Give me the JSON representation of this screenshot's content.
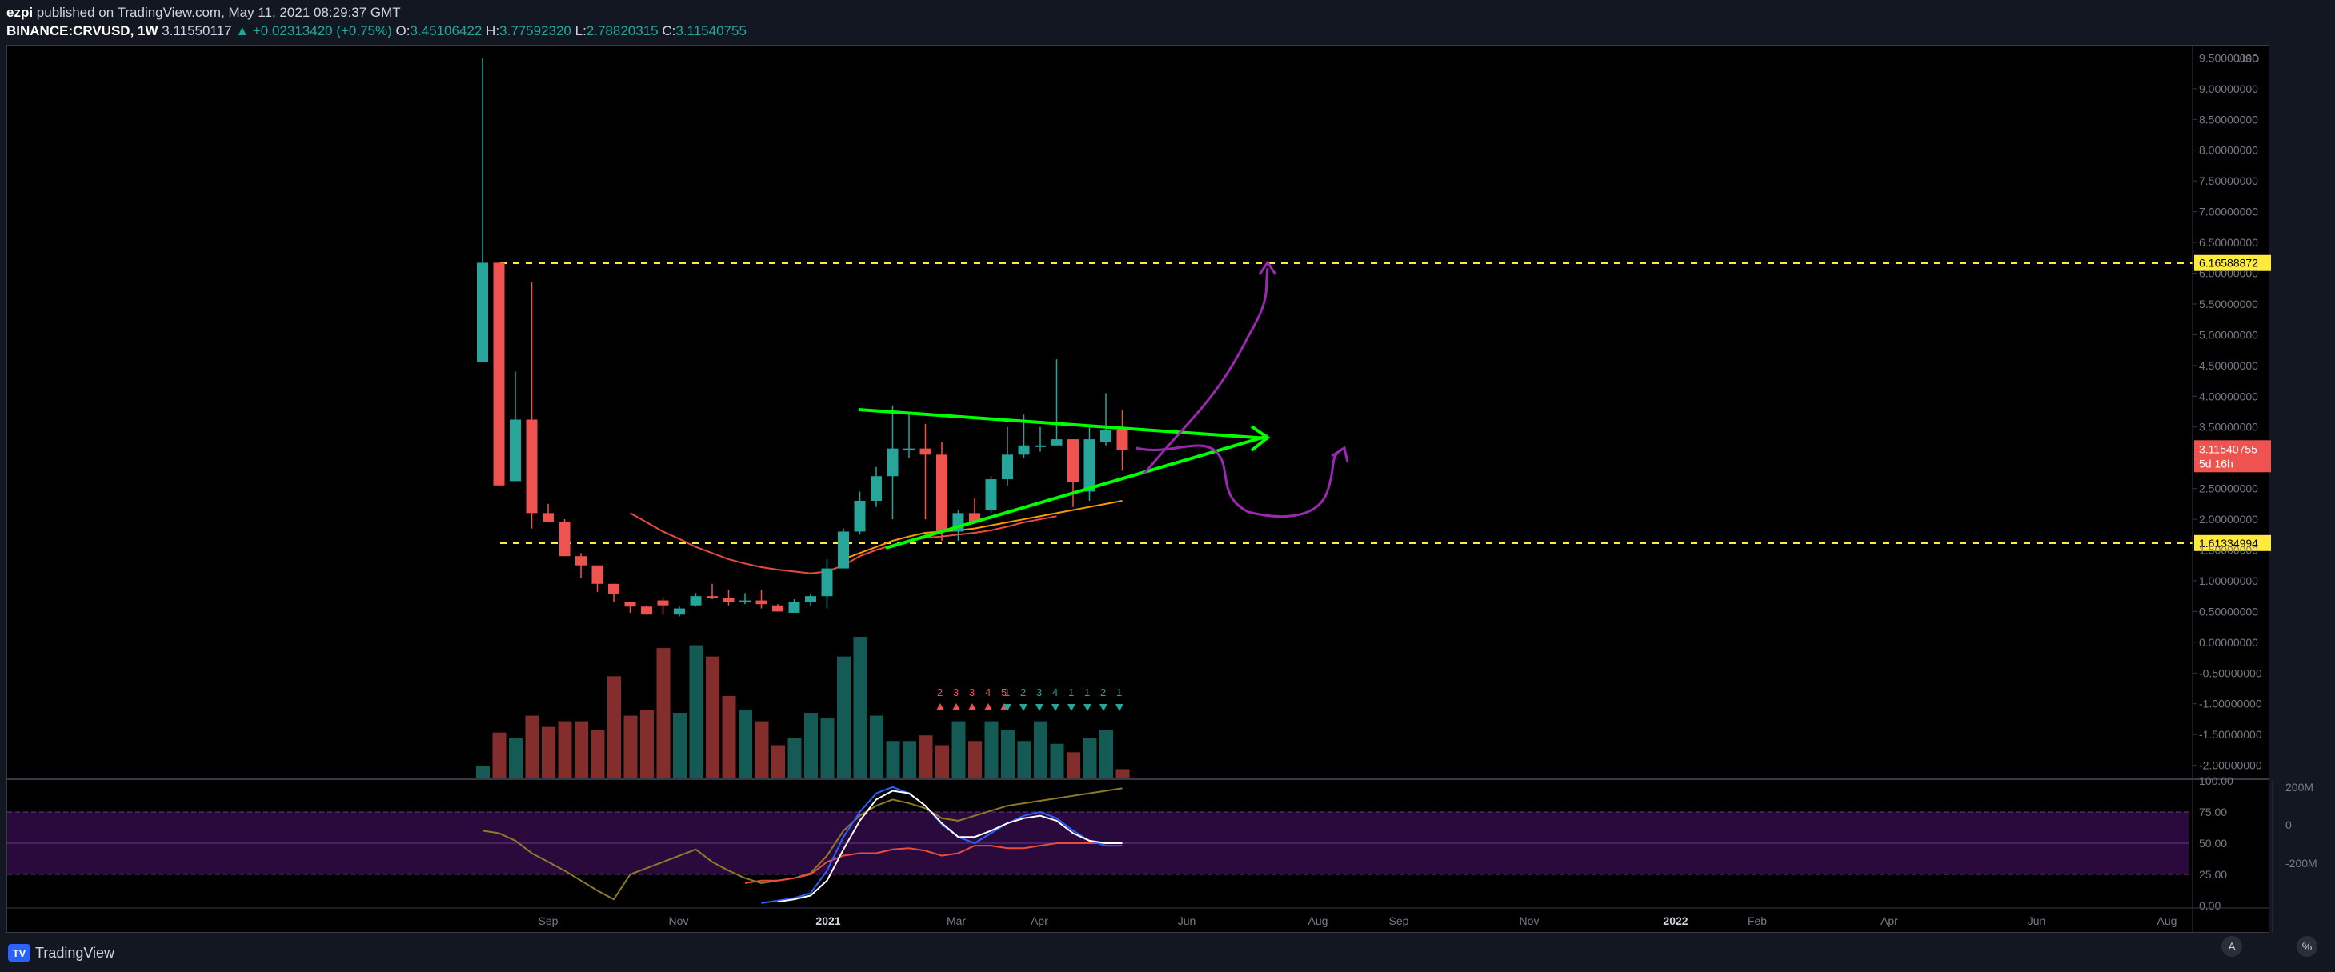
{
  "header": {
    "publisher": "ezpi",
    "published_text": "published on TradingView.com, May 11, 2021 08:29:37 GMT",
    "symbol": "BINANCE:CRVUSD, 1W",
    "last": "3.11550117",
    "change": "+0.02313420 (+0.75%)",
    "open_label": "O:",
    "open": "3.45106422",
    "high_label": "H:",
    "high": "3.77592320",
    "low_label": "L:",
    "low": "2.78820315",
    "close_label": "C:",
    "close": "3.11540755"
  },
  "price_axis": {
    "currency": "USD",
    "ticks": [
      "9.50000000",
      "9.00000000",
      "8.50000000",
      "8.00000000",
      "7.50000000",
      "7.00000000",
      "6.50000000",
      "6.00000000",
      "5.50000000",
      "5.00000000",
      "4.50000000",
      "4.00000000",
      "3.50000000",
      "3.00000000",
      "2.50000000",
      "2.00000000",
      "1.50000000",
      "1.00000000",
      "0.50000000",
      "0.00000000",
      "-0.50000000",
      "-1.00000000",
      "-1.50000000",
      "-2.00000000"
    ],
    "levels": [
      {
        "label": "6.16588872",
        "value": 6.16588872,
        "color": "#ffeb3b"
      },
      {
        "label": "1.61334994",
        "value": 1.61334994,
        "color": "#ffeb3b"
      }
    ],
    "current": {
      "price": "3.11540755",
      "countdown": "5d 16h",
      "color": "#ef5350"
    }
  },
  "time_axis": {
    "labels": [
      "Sep",
      "Nov",
      "2021",
      "Mar",
      "Apr",
      "Jun",
      "Aug",
      "Sep",
      "Nov",
      "2022",
      "Feb",
      "Apr",
      "Jun",
      "Aug"
    ]
  },
  "oscillator": {
    "ticks": [
      "100.00",
      "75.00",
      "50.00",
      "25.00",
      "0.00"
    ],
    "right_ticks": [
      "200M",
      "0",
      "-200M"
    ]
  },
  "td_counts": {
    "red": [
      "2",
      "3",
      "3",
      "4",
      "5"
    ],
    "green": [
      "1",
      "2",
      "3",
      "4",
      "1",
      "1",
      "2",
      "1"
    ]
  },
  "footer": {
    "brand": "TradingView",
    "auto_btn": "A",
    "log_btn": "%"
  },
  "colors": {
    "up": "#26a69a",
    "down": "#ef5350",
    "trendline": "#00ff00",
    "drawing": "#9c27b0",
    "level": "#ffeb3b",
    "rsi_band": "#2a0a3d"
  },
  "chart_data": {
    "type": "candlestick",
    "timeframe": "1W",
    "candles": [
      {
        "o": 4.55,
        "h": 9.5,
        "l": 4.55,
        "c": 6.17
      },
      {
        "o": 6.17,
        "h": 6.17,
        "l": 2.55,
        "c": 2.55
      },
      {
        "o": 2.62,
        "h": 4.4,
        "l": 2.62,
        "c": 3.62
      },
      {
        "o": 3.62,
        "h": 5.85,
        "l": 1.85,
        "c": 2.1
      },
      {
        "o": 2.1,
        "h": 2.25,
        "l": 1.95,
        "c": 1.95
      },
      {
        "o": 1.95,
        "h": 2.0,
        "l": 1.4,
        "c": 1.4
      },
      {
        "o": 1.4,
        "h": 1.45,
        "l": 1.05,
        "c": 1.25
      },
      {
        "o": 1.25,
        "h": 1.25,
        "l": 0.82,
        "c": 0.95
      },
      {
        "o": 0.95,
        "h": 0.95,
        "l": 0.65,
        "c": 0.78
      },
      {
        "o": 0.65,
        "h": 0.65,
        "l": 0.48,
        "c": 0.58
      },
      {
        "o": 0.58,
        "h": 0.6,
        "l": 0.45,
        "c": 0.45
      },
      {
        "o": 0.68,
        "h": 0.72,
        "l": 0.45,
        "c": 0.6
      },
      {
        "o": 0.45,
        "h": 0.58,
        "l": 0.42,
        "c": 0.55
      },
      {
        "o": 0.6,
        "h": 0.8,
        "l": 0.58,
        "c": 0.75
      },
      {
        "o": 0.75,
        "h": 0.95,
        "l": 0.7,
        "c": 0.72
      },
      {
        "o": 0.72,
        "h": 0.85,
        "l": 0.6,
        "c": 0.65
      },
      {
        "o": 0.65,
        "h": 0.8,
        "l": 0.62,
        "c": 0.68
      },
      {
        "o": 0.68,
        "h": 0.85,
        "l": 0.55,
        "c": 0.62
      },
      {
        "o": 0.6,
        "h": 0.62,
        "l": 0.5,
        "c": 0.5
      },
      {
        "o": 0.48,
        "h": 0.7,
        "l": 0.48,
        "c": 0.65
      },
      {
        "o": 0.65,
        "h": 0.78,
        "l": 0.6,
        "c": 0.75
      },
      {
        "o": 0.75,
        "h": 1.35,
        "l": 0.55,
        "c": 1.2
      },
      {
        "o": 1.2,
        "h": 1.85,
        "l": 1.2,
        "c": 1.8
      },
      {
        "o": 1.8,
        "h": 2.45,
        "l": 1.75,
        "c": 2.3
      },
      {
        "o": 2.3,
        "h": 2.85,
        "l": 2.2,
        "c": 2.7
      },
      {
        "o": 2.7,
        "h": 3.85,
        "l": 2.0,
        "c": 3.15
      },
      {
        "o": 3.15,
        "h": 3.7,
        "l": 3.0,
        "c": 3.15
      },
      {
        "o": 3.15,
        "h": 3.55,
        "l": 2.0,
        "c": 3.05
      },
      {
        "o": 3.05,
        "h": 3.25,
        "l": 1.65,
        "c": 1.8
      },
      {
        "o": 1.8,
        "h": 2.15,
        "l": 1.65,
        "c": 2.1
      },
      {
        "o": 2.1,
        "h": 2.35,
        "l": 1.95,
        "c": 1.95
      },
      {
        "o": 2.15,
        "h": 2.7,
        "l": 2.1,
        "c": 2.65
      },
      {
        "o": 2.65,
        "h": 3.5,
        "l": 2.55,
        "c": 3.05
      },
      {
        "o": 3.05,
        "h": 3.7,
        "l": 3.0,
        "c": 3.2
      },
      {
        "o": 3.2,
        "h": 3.5,
        "l": 3.1,
        "c": 3.2
      },
      {
        "o": 3.2,
        "h": 4.6,
        "l": 3.2,
        "c": 3.3
      },
      {
        "o": 3.3,
        "h": 3.3,
        "l": 2.2,
        "c": 2.6
      },
      {
        "o": 2.45,
        "h": 3.5,
        "l": 2.3,
        "c": 3.3
      },
      {
        "o": 3.25,
        "h": 4.05,
        "l": 3.2,
        "c": 3.45
      },
      {
        "o": 3.45,
        "h": 3.78,
        "l": 2.79,
        "c": 3.12
      }
    ],
    "volume": [
      0.08,
      0.32,
      0.28,
      0.44,
      0.36,
      0.4,
      0.4,
      0.34,
      0.72,
      0.44,
      0.48,
      0.92,
      0.46,
      0.94,
      0.86,
      0.58,
      0.48,
      0.4,
      0.23,
      0.28,
      0.46,
      0.42,
      0.86,
      1.0,
      0.44,
      0.26,
      0.26,
      0.3,
      0.23,
      0.4,
      0.26,
      0.4,
      0.34,
      0.26,
      0.4,
      0.24,
      0.18,
      0.28,
      0.34,
      0.06
    ],
    "ma_orange": [
      null,
      null,
      null,
      null,
      null,
      null,
      null,
      null,
      null,
      null,
      null,
      null,
      null,
      null,
      null,
      null,
      null,
      null,
      null,
      null,
      null,
      null,
      1.35,
      1.45,
      1.55,
      1.65,
      1.72,
      1.78,
      1.8,
      1.82,
      1.85,
      1.9,
      1.95,
      2.0,
      2.05,
      2.1,
      2.15,
      2.2,
      2.25,
      2.3
    ],
    "ma_red": [
      null,
      null,
      null,
      null,
      null,
      null,
      null,
      null,
      null,
      2.1,
      1.95,
      1.8,
      1.68,
      1.55,
      1.45,
      1.35,
      1.28,
      1.22,
      1.18,
      1.15,
      1.12,
      1.15,
      1.25,
      1.4,
      1.5,
      1.58,
      1.65,
      1.7,
      1.72,
      1.75,
      1.78,
      1.82,
      1.88,
      1.95,
      2.0,
      2.05,
      null,
      null,
      null,
      null
    ],
    "rsi_k": [
      null,
      null,
      null,
      null,
      null,
      null,
      null,
      null,
      null,
      null,
      null,
      null,
      null,
      null,
      null,
      null,
      null,
      2,
      4,
      6,
      10,
      28,
      55,
      75,
      90,
      95,
      90,
      80,
      65,
      55,
      50,
      58,
      66,
      72,
      75,
      70,
      60,
      52,
      48,
      48
    ],
    "rsi_d": [
      null,
      null,
      null,
      null,
      null,
      null,
      null,
      null,
      null,
      null,
      null,
      null,
      null,
      null,
      null,
      null,
      null,
      null,
      3,
      5,
      8,
      20,
      45,
      68,
      85,
      92,
      90,
      80,
      66,
      55,
      55,
      60,
      66,
      70,
      72,
      68,
      58,
      52,
      50,
      50
    ],
    "rsi_line": [
      60,
      58,
      52,
      42,
      35,
      28,
      20,
      12,
      5,
      25,
      30,
      35,
      40,
      45,
      35,
      28,
      22,
      18,
      20,
      22,
      26,
      40,
      60,
      72,
      80,
      85,
      82,
      78,
      70,
      68,
      72,
      76,
      80,
      82,
      84,
      86,
      88,
      90,
      92,
      94
    ],
    "rsi_line2": [
      null,
      null,
      null,
      null,
      null,
      null,
      null,
      null,
      null,
      null,
      null,
      null,
      null,
      null,
      null,
      null,
      18,
      20,
      20,
      22,
      25,
      35,
      40,
      42,
      42,
      45,
      46,
      44,
      40,
      42,
      48,
      48,
      46,
      46,
      48,
      50,
      50,
      50,
      50,
      50
    ],
    "y_range": [
      -2.2,
      9.7
    ]
  }
}
